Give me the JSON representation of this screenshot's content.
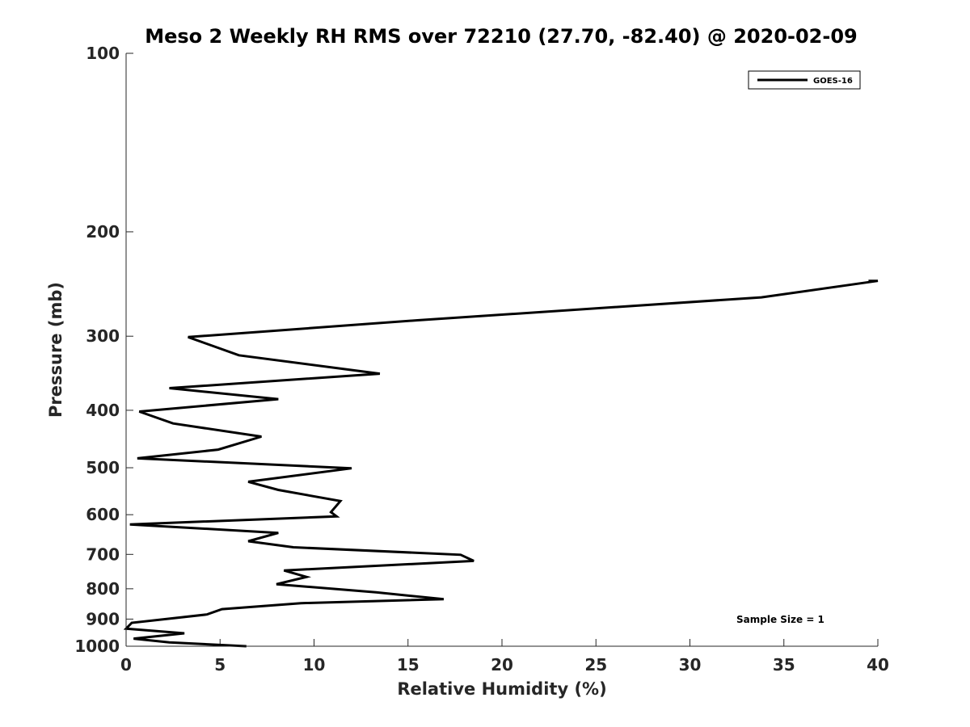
{
  "chart_data": {
    "type": "line",
    "title": "Meso 2 Weekly RH RMS over 72210 (27.70, -82.40) @ 2020-02-09",
    "xlabel": "Relative Humidity (%)",
    "ylabel": "Pressure (mb)",
    "xlim": [
      0,
      40
    ],
    "ylim": [
      100,
      1000
    ],
    "yscale": "log",
    "y_reversed": true,
    "grid": false,
    "xticks": [
      0,
      5,
      10,
      15,
      20,
      25,
      30,
      35,
      40
    ],
    "xtick_labels": [
      "0",
      "5",
      "10",
      "15",
      "20",
      "25",
      "30",
      "35",
      "40"
    ],
    "yticks": [
      100,
      200,
      300,
      400,
      500,
      600,
      700,
      800,
      900,
      1000
    ],
    "ytick_labels": [
      "100",
      "200",
      "300",
      "400",
      "500",
      "600",
      "700",
      "800",
      "900",
      "1000"
    ],
    "legend": {
      "position": "top-right",
      "entries": [
        "GOES-16"
      ]
    },
    "annotation": "Sample Size = 1",
    "series": [
      {
        "name": "GOES-16",
        "color": "#000000",
        "x": [
          39.5,
          40.0,
          33.8,
          15.5,
          3.3,
          6.0,
          13.5,
          2.3,
          8.1,
          0.7,
          2.5,
          7.2,
          4.9,
          0.6,
          12.0,
          6.5,
          8.1,
          11.4,
          10.9,
          11.2,
          0.2,
          8.1,
          6.5,
          8.9,
          17.8,
          18.5,
          8.4,
          9.6,
          8.0,
          13.3,
          16.9,
          9.3,
          5.1,
          4.3,
          0.3,
          0.0,
          3.1,
          0.4,
          2.3,
          6.4
        ],
        "y": [
          242,
          242,
          258,
          282,
          301,
          323,
          347,
          367,
          383,
          402,
          421,
          443,
          466,
          482,
          501,
          528,
          545,
          569,
          594,
          604,
          623,
          644,
          665,
          681,
          701,
          718,
          745,
          764,
          786,
          811,
          833,
          846,
          866,
          884,
          913,
          934,
          951,
          971,
          985,
          1000
        ]
      }
    ]
  }
}
